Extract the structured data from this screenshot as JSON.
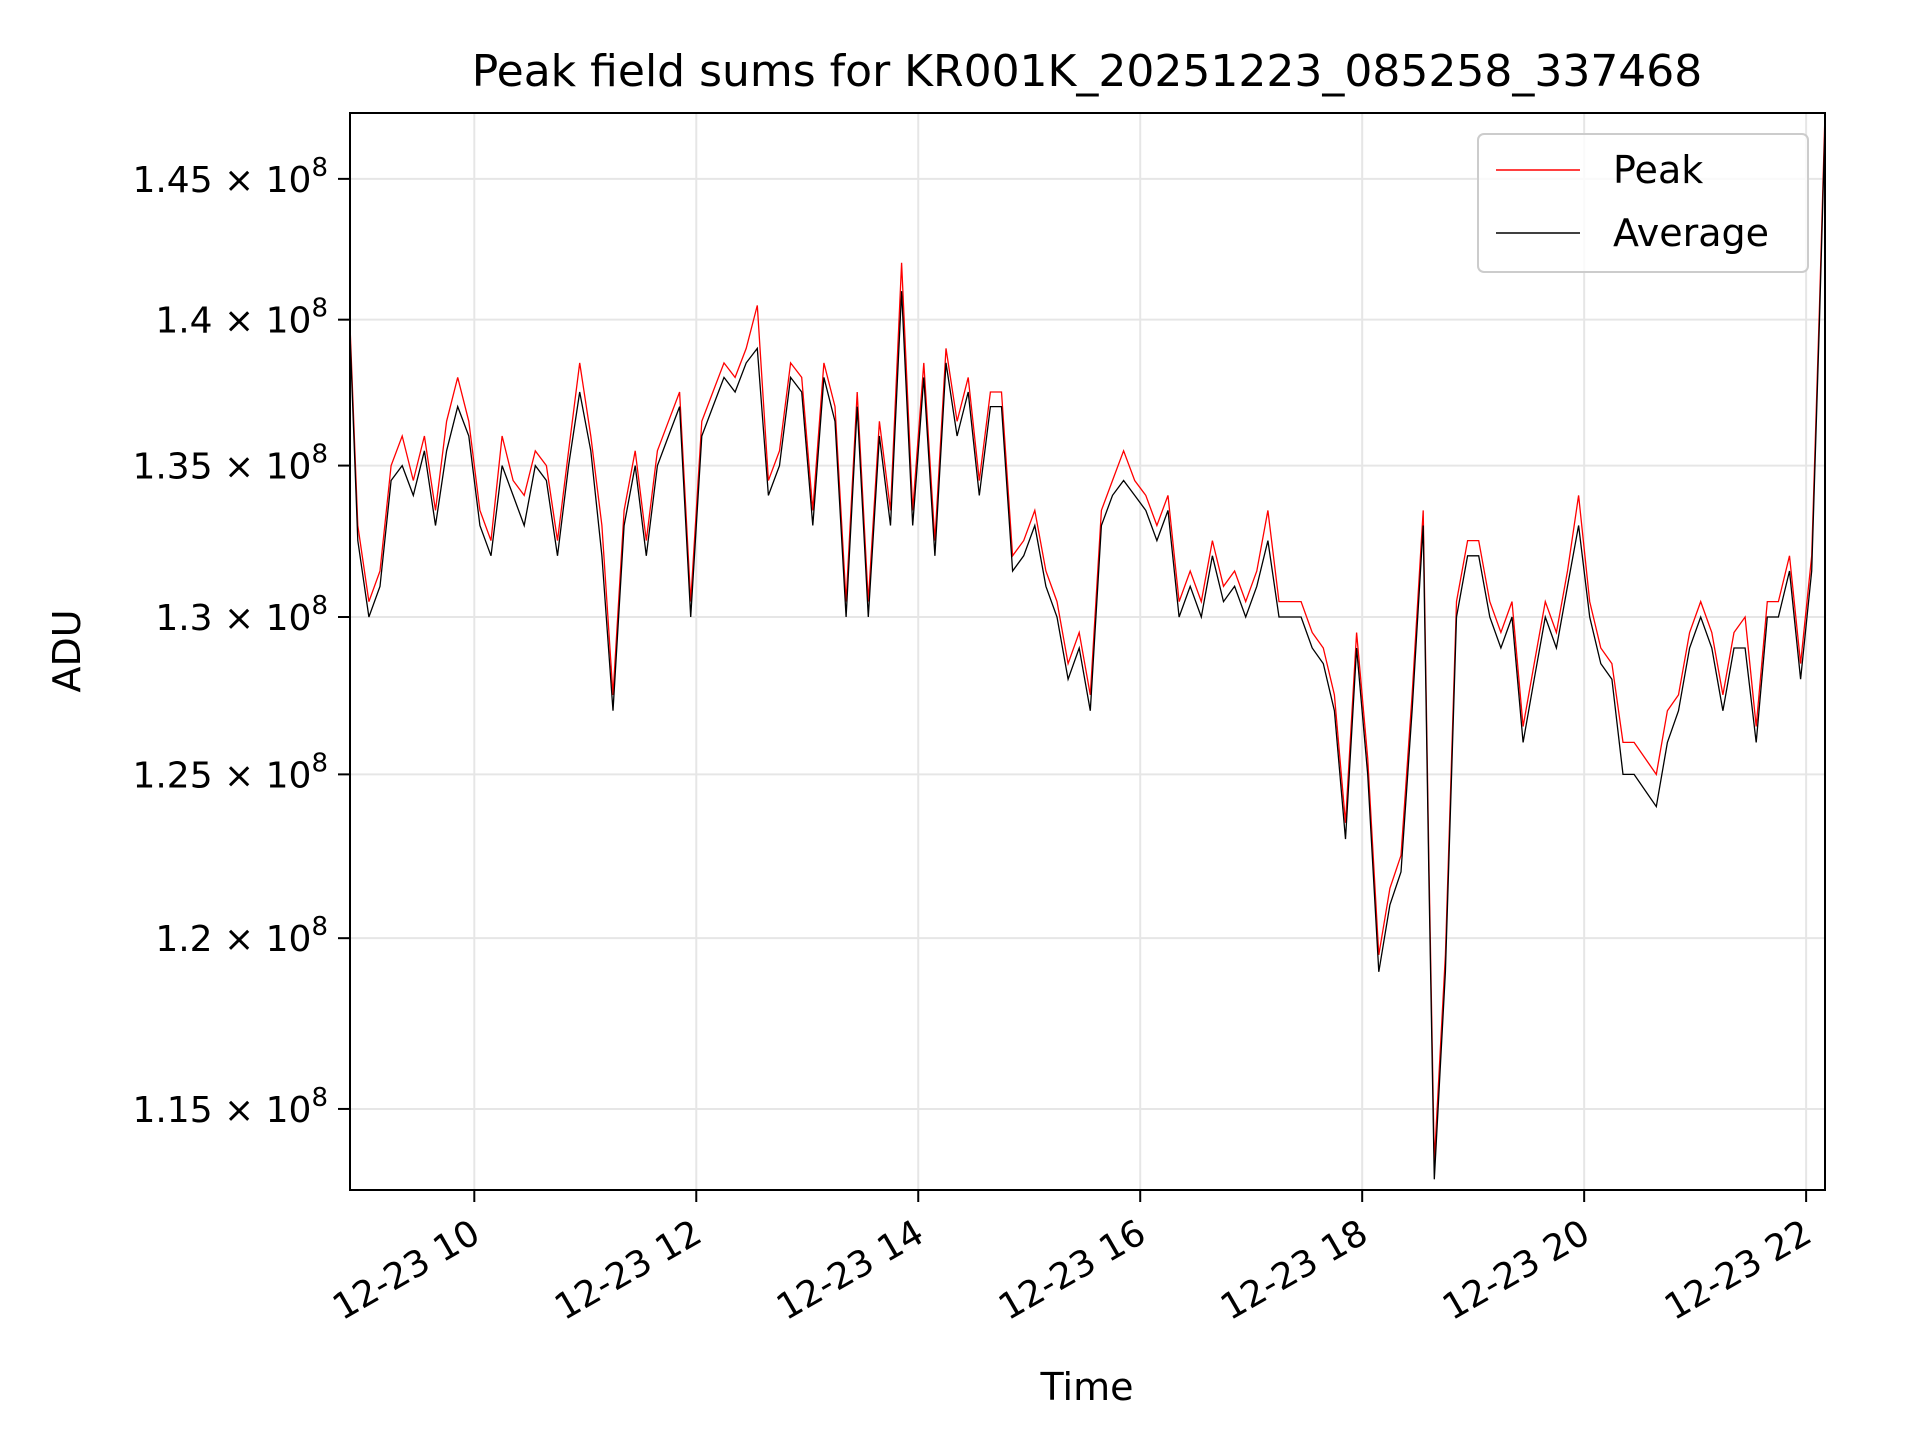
{
  "chart_data": {
    "type": "line",
    "title": "Peak field sums for KR001K_20251223_085258_337468",
    "xlabel": "Time",
    "ylabel": "ADU",
    "yscale": "log",
    "x_unit": "hours (2025-12-23)",
    "xlim": [
      8.88,
      22.17
    ],
    "ylim": [
      112700000.0,
      147400000.0
    ],
    "grid": true,
    "legend_position": "upper right",
    "x_ticks": [
      {
        "value": 10,
        "label": "12-23 10"
      },
      {
        "value": 12,
        "label": "12-23 12"
      },
      {
        "value": 14,
        "label": "12-23 14"
      },
      {
        "value": 16,
        "label": "12-23 16"
      },
      {
        "value": 18,
        "label": "12-23 18"
      },
      {
        "value": 20,
        "label": "12-23 20"
      },
      {
        "value": 22,
        "label": "12-23 22"
      }
    ],
    "y_ticks": [
      {
        "value": 115000000.0,
        "mantissa": "1.15",
        "base": "10",
        "exp": "8"
      },
      {
        "value": 120000000.0,
        "mantissa": "1.2",
        "base": "10",
        "exp": "8"
      },
      {
        "value": 125000000.0,
        "mantissa": "1.25",
        "base": "10",
        "exp": "8"
      },
      {
        "value": 130000000.0,
        "mantissa": "1.3",
        "base": "10",
        "exp": "8"
      },
      {
        "value": 135000000.0,
        "mantissa": "1.35",
        "base": "10",
        "exp": "8"
      },
      {
        "value": 140000000.0,
        "mantissa": "1.4",
        "base": "10",
        "exp": "8"
      },
      {
        "value": 145000000.0,
        "mantissa": "1.45",
        "base": "10",
        "exp": "8"
      }
    ],
    "series": [
      {
        "name": "Peak",
        "color": "#ff0000"
      },
      {
        "name": "Average",
        "color": "#000000"
      }
    ],
    "x": [
      8.88,
      8.95,
      9.05,
      9.15,
      9.25,
      9.35,
      9.45,
      9.55,
      9.65,
      9.75,
      9.85,
      9.95,
      10.05,
      10.15,
      10.25,
      10.35,
      10.45,
      10.55,
      10.65,
      10.75,
      10.85,
      10.95,
      11.05,
      11.15,
      11.25,
      11.35,
      11.45,
      11.55,
      11.65,
      11.75,
      11.85,
      11.95,
      12.05,
      12.15,
      12.25,
      12.35,
      12.45,
      12.55,
      12.65,
      12.75,
      12.85,
      12.95,
      13.05,
      13.15,
      13.25,
      13.35,
      13.45,
      13.55,
      13.65,
      13.75,
      13.85,
      13.95,
      14.05,
      14.15,
      14.25,
      14.35,
      14.45,
      14.55,
      14.65,
      14.75,
      14.85,
      14.95,
      15.05,
      15.15,
      15.25,
      15.35,
      15.45,
      15.55,
      15.65,
      15.75,
      15.85,
      15.95,
      16.05,
      16.15,
      16.25,
      16.35,
      16.45,
      16.55,
      16.65,
      16.75,
      16.85,
      16.95,
      17.05,
      17.15,
      17.25,
      17.35,
      17.45,
      17.55,
      17.65,
      17.75,
      17.85,
      17.95,
      18.05,
      18.15,
      18.25,
      18.35,
      18.45,
      18.55,
      18.6,
      18.65,
      18.75,
      18.85,
      18.95,
      19.05,
      19.15,
      19.25,
      19.35,
      19.45,
      19.55,
      19.65,
      19.75,
      19.85,
      19.95,
      20.05,
      20.15,
      20.25,
      20.35,
      20.45,
      20.55,
      20.65,
      20.75,
      20.85,
      20.95,
      21.05,
      21.15,
      21.25,
      21.35,
      21.45,
      21.55,
      21.65,
      21.75,
      21.85,
      21.95,
      22.05,
      22.12,
      22.17
    ],
    "average": [
      139500000.0,
      132500000.0,
      130000000.0,
      131000000.0,
      134500000.0,
      135000000.0,
      134000000.0,
      135500000.0,
      133000000.0,
      135500000.0,
      137000000.0,
      136000000.0,
      133000000.0,
      132000000.0,
      135000000.0,
      134000000.0,
      133000000.0,
      135000000.0,
      134500000.0,
      132000000.0,
      135000000.0,
      137500000.0,
      135500000.0,
      132000000.0,
      127000000.0,
      133000000.0,
      135000000.0,
      132000000.0,
      135000000.0,
      136000000.0,
      137000000.0,
      130000000.0,
      136000000.0,
      137000000.0,
      138000000.0,
      137500000.0,
      138500000.0,
      139000000.0,
      134000000.0,
      135000000.0,
      138000000.0,
      137500000.0,
      133000000.0,
      138000000.0,
      136500000.0,
      130000000.0,
      137000000.0,
      130000000.0,
      136000000.0,
      133000000.0,
      141000000.0,
      133000000.0,
      138000000.0,
      132000000.0,
      138500000.0,
      136000000.0,
      137500000.0,
      134000000.0,
      137000000.0,
      137000000.0,
      131500000.0,
      132000000.0,
      133000000.0,
      131000000.0,
      130000000.0,
      128000000.0,
      129000000.0,
      127000000.0,
      133000000.0,
      134000000.0,
      134500000.0,
      134000000.0,
      133500000.0,
      132500000.0,
      133500000.0,
      130000000.0,
      131000000.0,
      130000000.0,
      132000000.0,
      130500000.0,
      131000000.0,
      130000000.0,
      131000000.0,
      132500000.0,
      130000000.0,
      130000000.0,
      130000000.0,
      129000000.0,
      128500000.0,
      127000000.0,
      123000000.0,
      129000000.0,
      125000000.0,
      119000000.0,
      121000000.0,
      122000000.0,
      127000000.0,
      133000000.0,
      122000000.0,
      113000000.0,
      119000000.0,
      130000000.0,
      132000000.0,
      132000000.0,
      130000000.0,
      129000000.0,
      130000000.0,
      126000000.0,
      128000000.0,
      130000000.0,
      129000000.0,
      131000000.0,
      133000000.0,
      130000000.0,
      128500000.0,
      128000000.0,
      125000000.0,
      125000000.0,
      124500000.0,
      124000000.0,
      126000000.0,
      127000000.0,
      129000000.0,
      130000000.0,
      129000000.0,
      127000000.0,
      129000000.0,
      129000000.0,
      126000000.0,
      130000000.0,
      130000000.0,
      131500000.0,
      128000000.0,
      131500000.0,
      140000000.0,
      147000000.0
    ],
    "peak": [
      139800000.0,
      133000000.0,
      130500000.0,
      131500000.0,
      135000000.0,
      136000000.0,
      134500000.0,
      136000000.0,
      133500000.0,
      136500000.0,
      138000000.0,
      136500000.0,
      133500000.0,
      132500000.0,
      136000000.0,
      134500000.0,
      134000000.0,
      135500000.0,
      135000000.0,
      132500000.0,
      135500000.0,
      138500000.0,
      136000000.0,
      133000000.0,
      127500000.0,
      133500000.0,
      135500000.0,
      132500000.0,
      135500000.0,
      136500000.0,
      137500000.0,
      130500000.0,
      136500000.0,
      137500000.0,
      138500000.0,
      138000000.0,
      139000000.0,
      140500000.0,
      134500000.0,
      135500000.0,
      138500000.0,
      138000000.0,
      133500000.0,
      138500000.0,
      137000000.0,
      130500000.0,
      137500000.0,
      130500000.0,
      136500000.0,
      133500000.0,
      142000000.0,
      133500000.0,
      138500000.0,
      132500000.0,
      139000000.0,
      136500000.0,
      138000000.0,
      134500000.0,
      137500000.0,
      137500000.0,
      132000000.0,
      132500000.0,
      133500000.0,
      131500000.0,
      130500000.0,
      128500000.0,
      129500000.0,
      127500000.0,
      133500000.0,
      134500000.0,
      135500000.0,
      134500000.0,
      134000000.0,
      133000000.0,
      134000000.0,
      130500000.0,
      131500000.0,
      130500000.0,
      132500000.0,
      131000000.0,
      131500000.0,
      130500000.0,
      131500000.0,
      133500000.0,
      130500000.0,
      130500000.0,
      130500000.0,
      129500000.0,
      129000000.0,
      127500000.0,
      123500000.0,
      129500000.0,
      125500000.0,
      119500000.0,
      121500000.0,
      122500000.0,
      127500000.0,
      133500000.0,
      122500000.0,
      113500000.0,
      119500000.0,
      130500000.0,
      132500000.0,
      132500000.0,
      130500000.0,
      129500000.0,
      130500000.0,
      126500000.0,
      128500000.0,
      130500000.0,
      129500000.0,
      131500000.0,
      134000000.0,
      130500000.0,
      129000000.0,
      128500000.0,
      126000000.0,
      126000000.0,
      125500000.0,
      125000000.0,
      127000000.0,
      127500000.0,
      129500000.0,
      130500000.0,
      129500000.0,
      127500000.0,
      129500000.0,
      130000000.0,
      126500000.0,
      130500000.0,
      130500000.0,
      132000000.0,
      128500000.0,
      132000000.0,
      140500000.0,
      147400000.0
    ]
  }
}
